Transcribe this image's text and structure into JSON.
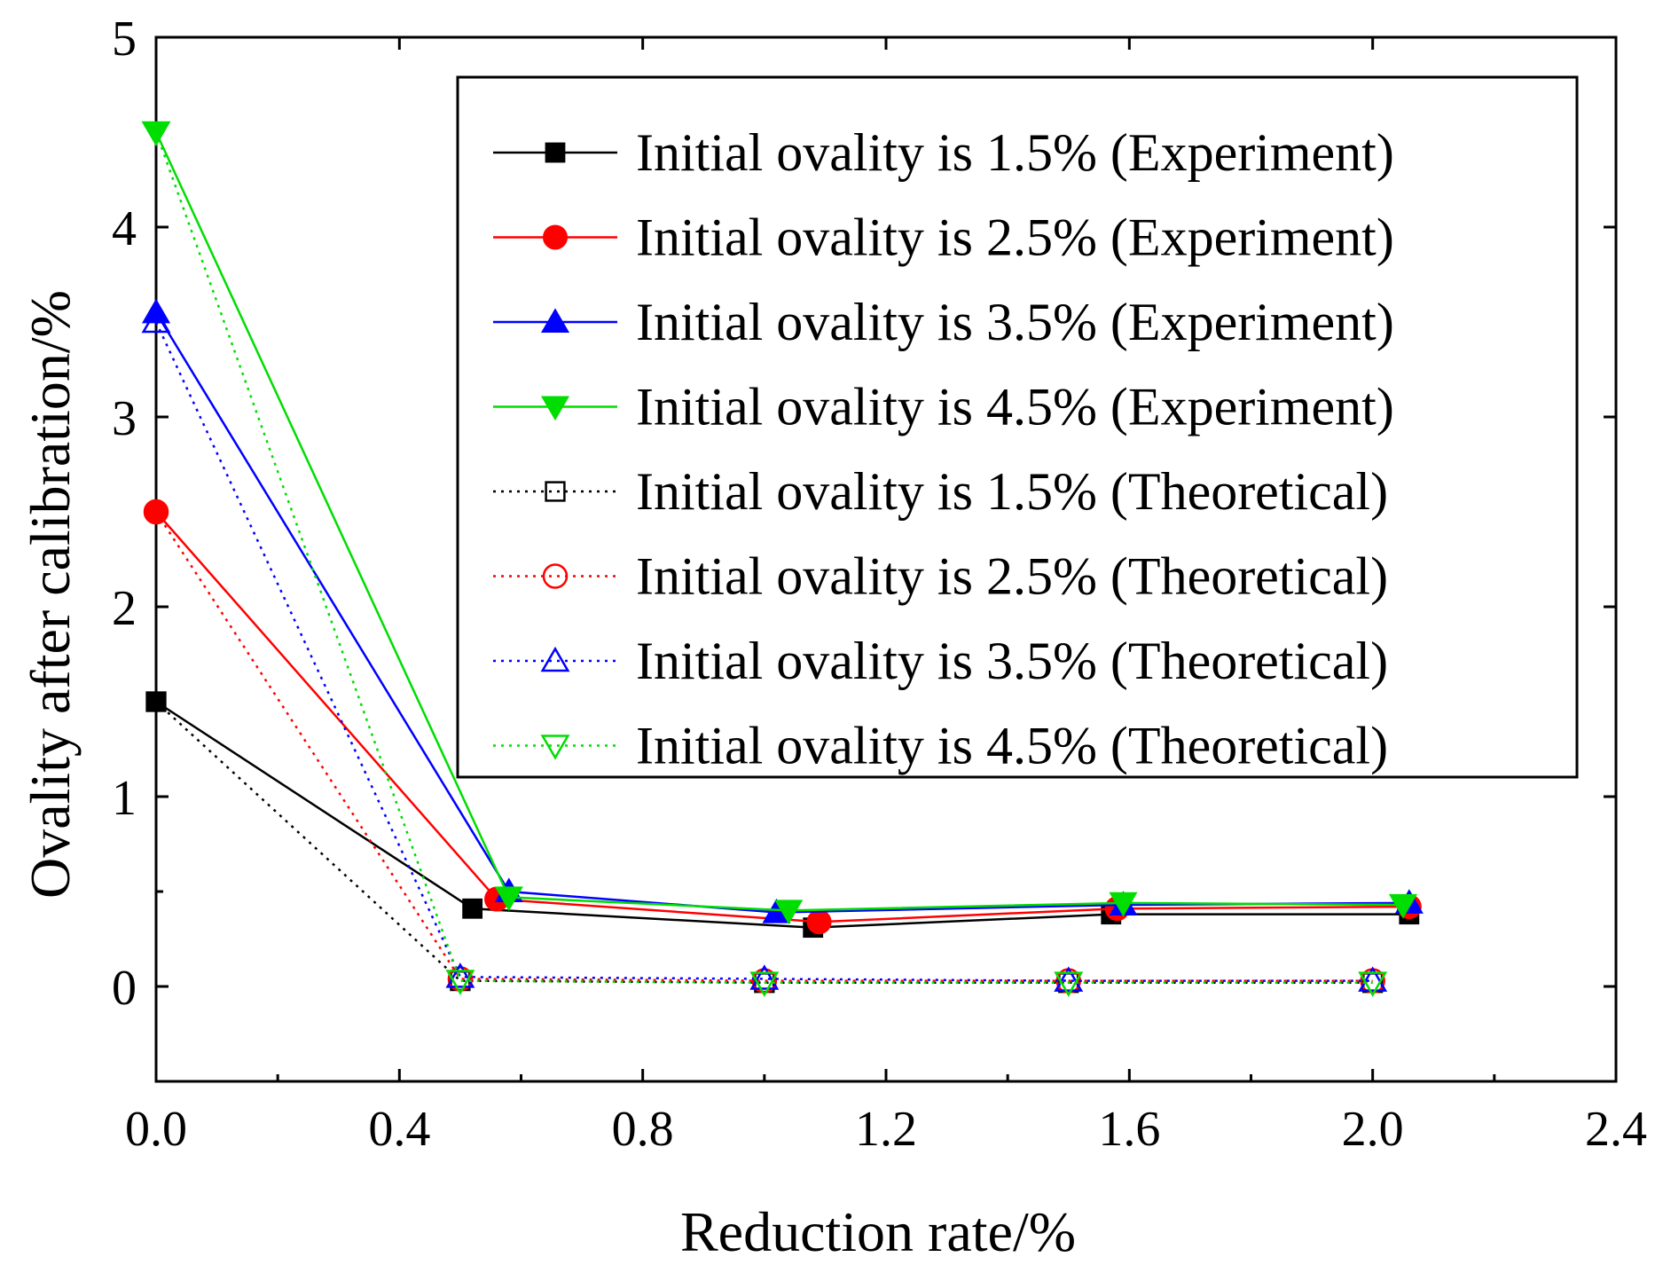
{
  "chart_data": {
    "type": "line",
    "title": "",
    "xlabel": "Reduction rate/%",
    "ylabel": "Ovality after calibration/%",
    "xlim": [
      0.0,
      2.4
    ],
    "ylim": [
      -0.5,
      5.0
    ],
    "x_ticks": [
      0.0,
      0.4,
      0.8,
      1.2,
      1.6,
      2.0,
      2.4
    ],
    "x_tick_labels": [
      "0.0",
      "0.4",
      "0.8",
      "1.2",
      "1.6",
      "2.0",
      "2.4"
    ],
    "y_ticks": [
      0,
      1,
      2,
      3,
      4,
      5
    ],
    "y_tick_labels": [
      "0",
      "1",
      "2",
      "3",
      "4",
      "5"
    ],
    "grid": false,
    "legend_position": "top-right",
    "series": [
      {
        "name": "Initial ovality is 1.5% (Experiment)",
        "color": "#000000",
        "style": "solid",
        "marker": "square",
        "filled": true,
        "x": [
          0.0,
          0.52,
          1.08,
          1.57,
          2.06
        ],
        "y": [
          1.5,
          0.41,
          0.31,
          0.38,
          0.38
        ]
      },
      {
        "name": "Initial ovality is 2.5% (Experiment)",
        "color": "#ff0000",
        "style": "solid",
        "marker": "circle",
        "filled": true,
        "x": [
          0.0,
          0.56,
          1.09,
          1.58,
          2.06
        ],
        "y": [
          2.5,
          0.46,
          0.34,
          0.41,
          0.42
        ]
      },
      {
        "name": "Initial ovality is 3.5% (Experiment)",
        "color": "#0000ff",
        "style": "solid",
        "marker": "triangle-up",
        "filled": true,
        "x": [
          0.0,
          0.58,
          1.02,
          1.59,
          2.06
        ],
        "y": [
          3.55,
          0.5,
          0.39,
          0.43,
          0.44
        ]
      },
      {
        "name": "Initial ovality is 4.5% (Experiment)",
        "color": "#00dd00",
        "style": "solid",
        "marker": "triangle-down",
        "filled": true,
        "x": [
          0.0,
          0.58,
          1.04,
          1.59,
          2.05
        ],
        "y": [
          4.5,
          0.47,
          0.4,
          0.44,
          0.43
        ]
      },
      {
        "name": "Initial ovality is 1.5% (Theoretical)",
        "color": "#000000",
        "style": "dotted",
        "marker": "square",
        "filled": false,
        "x": [
          0.0,
          0.5,
          1.0,
          1.5,
          2.0
        ],
        "y": [
          1.5,
          0.03,
          0.02,
          0.02,
          0.02
        ]
      },
      {
        "name": "Initial ovality is 2.5% (Theoretical)",
        "color": "#ff0000",
        "style": "dotted",
        "marker": "circle",
        "filled": false,
        "x": [
          0.0,
          0.5,
          1.0,
          1.5,
          2.0
        ],
        "y": [
          2.5,
          0.04,
          0.03,
          0.03,
          0.03
        ]
      },
      {
        "name": "Initial ovality is 3.5% (Theoretical)",
        "color": "#0000ff",
        "style": "dotted",
        "marker": "triangle-up",
        "filled": false,
        "x": [
          0.0,
          0.5,
          1.0,
          1.5,
          2.0
        ],
        "y": [
          3.5,
          0.05,
          0.04,
          0.03,
          0.03
        ]
      },
      {
        "name": "Initial ovality is 4.5% (Theoretical)",
        "color": "#00dd00",
        "style": "dotted",
        "marker": "triangle-down",
        "filled": false,
        "x": [
          0.0,
          0.5,
          1.0,
          1.5,
          2.0
        ],
        "y": [
          4.5,
          0.03,
          0.02,
          0.02,
          0.02
        ]
      }
    ]
  }
}
